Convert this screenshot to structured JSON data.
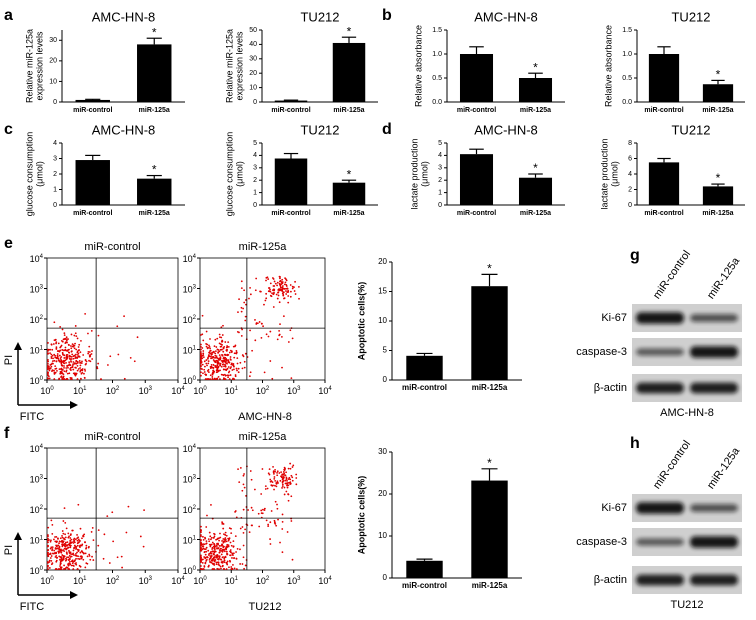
{
  "panel_labels": [
    "a",
    "b",
    "c",
    "d",
    "e",
    "f",
    "g",
    "h"
  ],
  "chart_data": [
    {
      "type": "bar",
      "title": "AMC-HN-8",
      "ylabel": [
        "Relative miR-125a",
        "expression  levels"
      ],
      "categories": [
        "miR-control",
        "miR-125a"
      ],
      "values": [
        1,
        28
      ],
      "errors": [
        0.3,
        3
      ],
      "annotations": [
        null,
        "*"
      ],
      "color": "#000000",
      "ylim": [
        0,
        35
      ],
      "yticks": [
        0,
        10,
        20,
        30
      ]
    },
    {
      "type": "bar",
      "title": "TU212",
      "ylabel": [
        "Relative miR-125a",
        "expression  levels"
      ],
      "categories": [
        "miR-control",
        "miR-125a"
      ],
      "values": [
        1,
        41
      ],
      "errors": [
        0.3,
        4
      ],
      "annotations": [
        null,
        "*"
      ],
      "color": "#000000",
      "ylim": [
        0,
        50
      ],
      "yticks": [
        0,
        10,
        20,
        30,
        40,
        50
      ]
    },
    {
      "type": "bar",
      "title": "AMC-HN-8",
      "ylabel": [
        "Relative absorbance"
      ],
      "categories": [
        "miR-control",
        "miR-125a"
      ],
      "values": [
        1.0,
        0.5
      ],
      "errors": [
        0.15,
        0.1
      ],
      "annotations": [
        null,
        "*"
      ],
      "color": "#000000",
      "ylim": [
        0,
        1.5
      ],
      "yticks": [
        {
          "value": 0,
          "label": "0.0"
        },
        0.5,
        {
          "value": 1,
          "label": "1.0"
        },
        1.5
      ]
    },
    {
      "type": "bar",
      "title": "TU212",
      "ylabel": [
        "Relative absorbance"
      ],
      "categories": [
        "miR-control",
        "miR-125a"
      ],
      "values": [
        1.0,
        0.37
      ],
      "errors": [
        0.15,
        0.08
      ],
      "annotations": [
        null,
        "*"
      ],
      "color": "#000000",
      "ylim": [
        0,
        1.5
      ],
      "yticks": [
        {
          "value": 0,
          "label": "0.0"
        },
        0.5,
        {
          "value": 1,
          "label": "1.0"
        },
        1.5
      ]
    },
    {
      "type": "bar",
      "title": "AMC-HN-8",
      "ylabel": [
        "glucose consumption",
        "(μmol)"
      ],
      "categories": [
        "miR-control",
        "miR-125a"
      ],
      "values": [
        2.9,
        1.7
      ],
      "errors": [
        0.3,
        0.2
      ],
      "annotations": [
        null,
        "*"
      ],
      "color": "#000000",
      "ylim": [
        0,
        4
      ],
      "yticks": [
        0,
        1,
        2,
        3,
        4
      ]
    },
    {
      "type": "bar",
      "title": "TU212",
      "ylabel": [
        "glucose consumption",
        "(μmol)"
      ],
      "categories": [
        "miR-control",
        "miR-125a"
      ],
      "values": [
        3.75,
        1.8
      ],
      "errors": [
        0.4,
        0.2
      ],
      "annotations": [
        null,
        "*"
      ],
      "color": "#000000",
      "ylim": [
        0,
        5
      ],
      "yticks": [
        0,
        1,
        2,
        3,
        4,
        5
      ]
    },
    {
      "type": "bar",
      "title": "AMC-HN-8",
      "ylabel": [
        "lactate production",
        "(μmol)"
      ],
      "categories": [
        "miR-control",
        "miR-125a"
      ],
      "values": [
        4.1,
        2.2
      ],
      "errors": [
        0.4,
        0.3
      ],
      "annotations": [
        null,
        "*"
      ],
      "color": "#000000",
      "ylim": [
        0,
        5
      ],
      "yticks": [
        0,
        1,
        2,
        3,
        4,
        5
      ]
    },
    {
      "type": "bar",
      "title": "TU212",
      "ylabel": [
        "lactate production",
        "(μmol)"
      ],
      "categories": [
        "miR-control",
        "miR-125a"
      ],
      "values": [
        5.5,
        2.4
      ],
      "errors": [
        0.5,
        0.3
      ],
      "annotations": [
        null,
        "*"
      ],
      "color": "#000000",
      "ylim": [
        0,
        8
      ],
      "yticks": [
        0,
        2,
        4,
        6,
        8
      ]
    },
    {
      "type": "bar",
      "ylabel": [
        "Apoptotic cells(%)"
      ],
      "categories": [
        "miR-control",
        "miR-125a"
      ],
      "values": [
        4.1,
        15.9
      ],
      "errors": [
        0.4,
        2
      ],
      "annotations": [
        null,
        "*"
      ],
      "color": "#000000",
      "ylim": [
        0,
        20
      ],
      "yticks": [
        0,
        5,
        10,
        15,
        20
      ]
    },
    {
      "type": "bar",
      "ylabel": [
        "Apoptotic cells(%)"
      ],
      "categories": [
        "miR-control",
        "miR-125a"
      ],
      "values": [
        4.1,
        23.2
      ],
      "errors": [
        0.4,
        2.8
      ],
      "annotations": [
        null,
        "*"
      ],
      "color": "#000000",
      "ylim": [
        0,
        30
      ],
      "yticks": [
        0,
        10,
        20,
        30
      ]
    }
  ],
  "flow": [
    {
      "titles": [
        "miR-control",
        "miR-125a"
      ],
      "ylabel": "PI",
      "xlabel": "FITC",
      "caption": "AMC-HN-8",
      "tick_base": "10",
      "tick_exponents": [
        "0",
        "1",
        "2",
        "3",
        "4"
      ]
    },
    {
      "titles": [
        "miR-control",
        "miR-125a"
      ],
      "ylabel": "PI",
      "xlabel": "FITC",
      "caption": "TU212",
      "tick_base": "10",
      "tick_exponents": [
        "0",
        "1",
        "2",
        "3",
        "4"
      ]
    }
  ],
  "blots": [
    {
      "lanes": [
        "miR-control",
        "miR-125a"
      ],
      "rows": [
        "Ki-67",
        "caspase-3",
        "β-actin"
      ],
      "caption": "AMC-HN-8"
    },
    {
      "lanes": [
        "miR-control",
        "miR-125a"
      ],
      "rows": [
        "Ki-67",
        "caspase-3",
        "β-actin"
      ],
      "caption": "TU212"
    }
  ]
}
